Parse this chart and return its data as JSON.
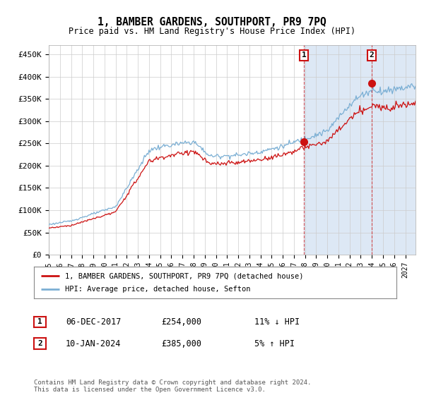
{
  "title": "1, BAMBER GARDENS, SOUTHPORT, PR9 7PQ",
  "subtitle": "Price paid vs. HM Land Registry's House Price Index (HPI)",
  "ylim": [
    0,
    470000
  ],
  "yticks": [
    0,
    50000,
    100000,
    150000,
    200000,
    250000,
    300000,
    350000,
    400000,
    450000
  ],
  "ytick_labels": [
    "£0",
    "£50K",
    "£100K",
    "£150K",
    "£200K",
    "£250K",
    "£300K",
    "£350K",
    "£400K",
    "£450K"
  ],
  "hpi_color": "#7bafd4",
  "price_color": "#cc1111",
  "legend_label_price": "1, BAMBER GARDENS, SOUTHPORT, PR9 7PQ (detached house)",
  "legend_label_hpi": "HPI: Average price, detached house, Sefton",
  "transaction1_date": "06-DEC-2017",
  "transaction1_price": "£254,000",
  "transaction1_hpi": "11% ↓ HPI",
  "transaction2_date": "10-JAN-2024",
  "transaction2_price": "£385,000",
  "transaction2_hpi": "5% ↑ HPI",
  "footer": "Contains HM Land Registry data © Crown copyright and database right 2024.\nThis data is licensed under the Open Government Licence v3.0.",
  "shade_color": "#dde8f5",
  "hatch_color": "#c8d8ee",
  "marker1_value": 254000,
  "marker2_value": 385000,
  "start_year": 1995,
  "end_year": 2027
}
